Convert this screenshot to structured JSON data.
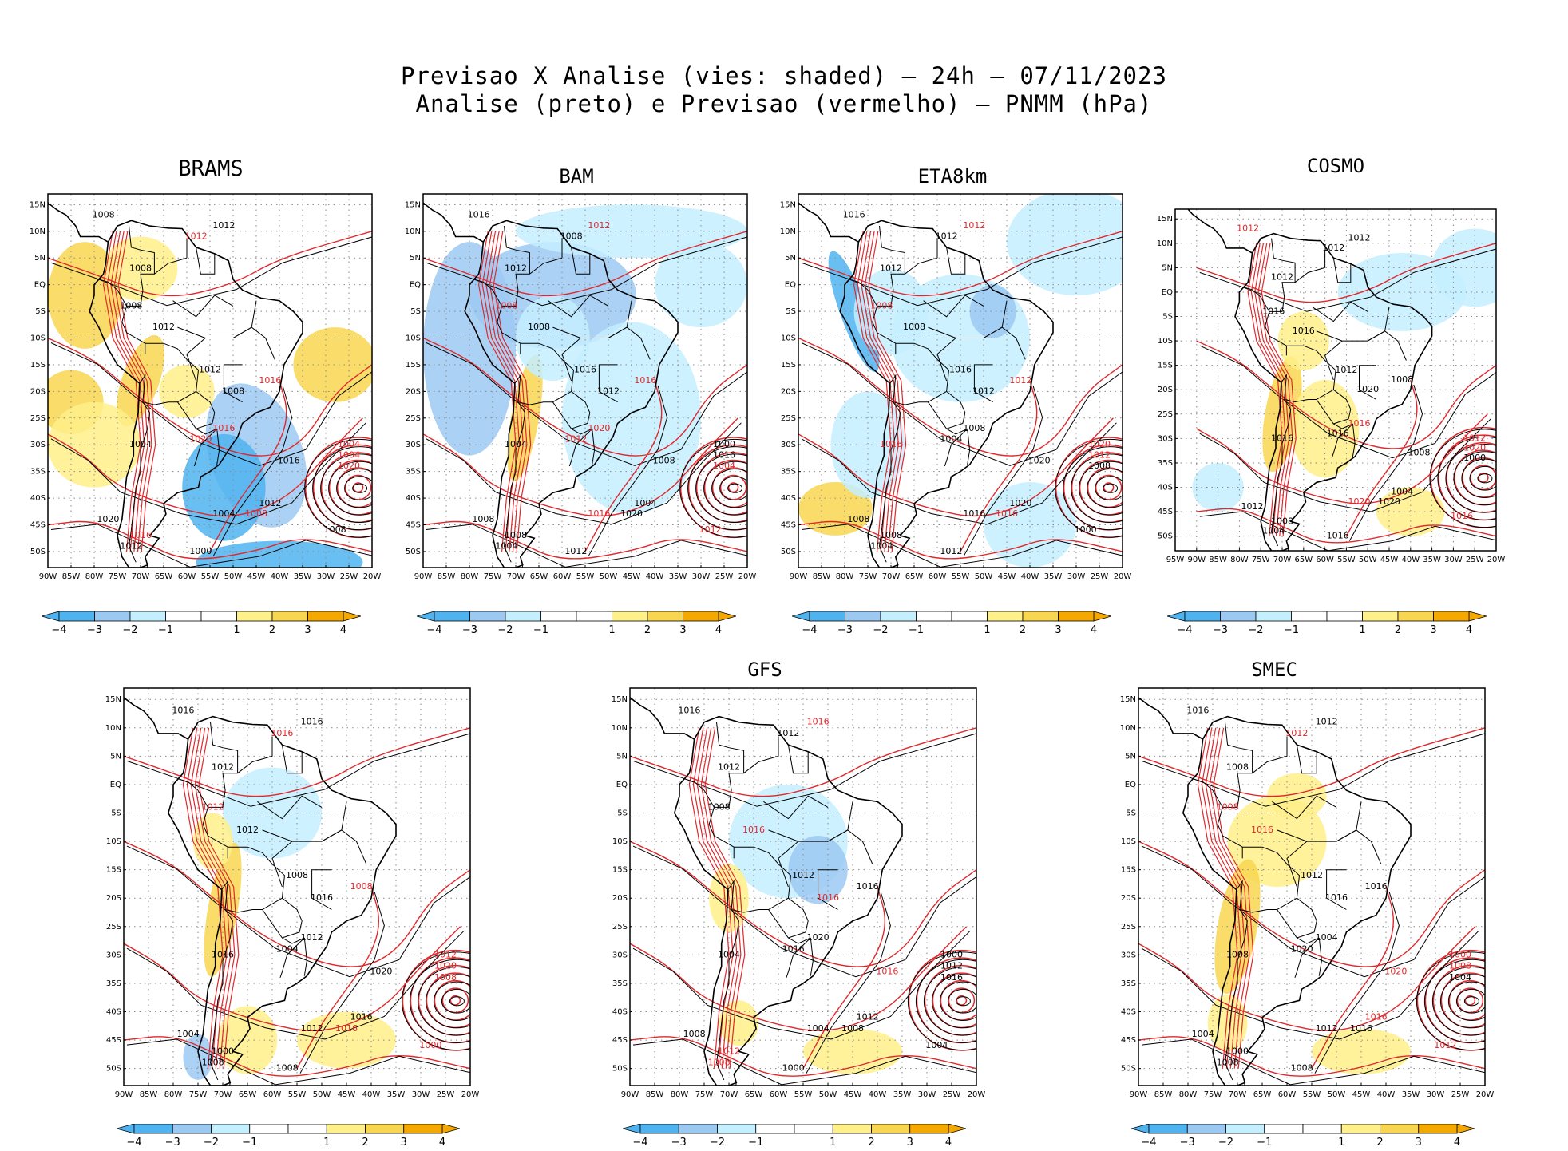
{
  "title": {
    "line1": "Previsao X Analise (vies: shaded) – 24h – 07/11/2023",
    "line2": "Analise (preto) e Previsao (vermelho) – PNMM (hPa)"
  },
  "colors": {
    "neg4": "#4fb3f0",
    "neg3": "#9cc9f2",
    "neg2": "#c4efff",
    "neg1": "#ffffff",
    "pos1": "#ffffff",
    "pos2": "#fff08a",
    "pos3": "#f8d650",
    "pos4": "#f5a900",
    "analysis_contour": "#000000",
    "forecast_contour": "#e0282c",
    "grid": "#888888"
  },
  "lat_labels": [
    "15N",
    "10N",
    "5N",
    "EQ",
    "5S",
    "10S",
    "15S",
    "20S",
    "25S",
    "30S",
    "35S",
    "40S",
    "45S",
    "50S"
  ],
  "lon_labels_standard": [
    "90W",
    "85W",
    "80W",
    "75W",
    "70W",
    "65W",
    "60W",
    "55W",
    "50W",
    "45W",
    "40W",
    "35W",
    "30W",
    "25W",
    "20W"
  ],
  "lon_labels_cosmo": [
    "95W",
    "90W",
    "85W",
    "80W",
    "75W",
    "70W",
    "65W",
    "60W",
    "55W",
    "50W",
    "45W",
    "40W",
    "35W",
    "30W",
    "25W",
    "20W"
  ],
  "colorbar_labels": [
    "−4",
    "−3",
    "−2",
    "−1",
    "1",
    "2",
    "3",
    "4"
  ],
  "panels": [
    {
      "id": "brams",
      "name": "BRAMS",
      "labels": [
        {
          "t": "1008",
          "c": "k"
        },
        {
          "t": "1012",
          "c": "k"
        },
        {
          "t": "1012",
          "c": "r"
        },
        {
          "t": "1008",
          "c": "k"
        },
        {
          "t": "1008",
          "c": "k"
        },
        {
          "t": "1012",
          "c": "k"
        },
        {
          "t": "1016",
          "c": "r"
        },
        {
          "t": "1012",
          "c": "k"
        },
        {
          "t": "1008",
          "c": "k"
        },
        {
          "t": "1004",
          "c": "k"
        },
        {
          "t": "1016",
          "c": "r"
        },
        {
          "t": "1020",
          "c": "r"
        },
        {
          "t": "1016",
          "c": "k"
        },
        {
          "t": "1012",
          "c": "k"
        },
        {
          "t": "1008",
          "c": "r"
        },
        {
          "t": "1004",
          "c": "k"
        },
        {
          "t": "1000",
          "c": "k"
        },
        {
          "t": "1020",
          "c": "k"
        },
        {
          "t": "1016",
          "c": "r"
        },
        {
          "t": "1012",
          "c": "k"
        },
        {
          "t": "1008",
          "c": "k"
        },
        {
          "t": "1004",
          "c": "r"
        },
        {
          "t": "1004",
          "c": "r"
        },
        {
          "t": "1020",
          "c": "r"
        }
      ]
    },
    {
      "id": "bam",
      "name": "BAM",
      "labels": [
        {
          "t": "1016",
          "c": "k"
        },
        {
          "t": "1012",
          "c": "r"
        },
        {
          "t": "1008",
          "c": "k"
        },
        {
          "t": "1012",
          "c": "k"
        },
        {
          "t": "1008",
          "c": "r"
        },
        {
          "t": "1008",
          "c": "k"
        },
        {
          "t": "1016",
          "c": "r"
        },
        {
          "t": "1016",
          "c": "k"
        },
        {
          "t": "1012",
          "c": "k"
        },
        {
          "t": "1004",
          "c": "k"
        },
        {
          "t": "1020",
          "c": "r"
        },
        {
          "t": "1012",
          "c": "r"
        },
        {
          "t": "1008",
          "c": "k"
        },
        {
          "t": "1004",
          "c": "k"
        },
        {
          "t": "1020",
          "c": "k"
        },
        {
          "t": "1016",
          "c": "r"
        },
        {
          "t": "1012",
          "c": "k"
        },
        {
          "t": "1008",
          "c": "k"
        },
        {
          "t": "1008",
          "c": "k"
        },
        {
          "t": "1004",
          "c": "k"
        },
        {
          "t": "1012",
          "c": "r"
        },
        {
          "t": "1000",
          "c": "k"
        },
        {
          "t": "1016",
          "c": "k"
        },
        {
          "t": "1004",
          "c": "r"
        }
      ]
    },
    {
      "id": "eta8km",
      "name": "ETA8km",
      "labels": [
        {
          "t": "1016",
          "c": "k"
        },
        {
          "t": "1012",
          "c": "r"
        },
        {
          "t": "1012",
          "c": "k"
        },
        {
          "t": "1012",
          "c": "k"
        },
        {
          "t": "1008",
          "c": "r"
        },
        {
          "t": "1008",
          "c": "k"
        },
        {
          "t": "1012",
          "c": "r"
        },
        {
          "t": "1016",
          "c": "k"
        },
        {
          "t": "1012",
          "c": "k"
        },
        {
          "t": "1016",
          "c": "r"
        },
        {
          "t": "1008",
          "c": "k"
        },
        {
          "t": "1004",
          "c": "k"
        },
        {
          "t": "1020",
          "c": "k"
        },
        {
          "t": "1020",
          "c": "k"
        },
        {
          "t": "1016",
          "c": "r"
        },
        {
          "t": "1016",
          "c": "k"
        },
        {
          "t": "1012",
          "c": "k"
        },
        {
          "t": "1008",
          "c": "k"
        },
        {
          "t": "1008",
          "c": "k"
        },
        {
          "t": "1004",
          "c": "k"
        },
        {
          "t": "1000",
          "c": "k"
        },
        {
          "t": "1020",
          "c": "r"
        },
        {
          "t": "1012",
          "c": "r"
        },
        {
          "t": "1008",
          "c": "k"
        }
      ]
    },
    {
      "id": "cosmo",
      "name": "COSMO",
      "labels": [
        {
          "t": "1012",
          "c": "r"
        },
        {
          "t": "1012",
          "c": "k"
        },
        {
          "t": "1012",
          "c": "k"
        },
        {
          "t": "1012",
          "c": "k"
        },
        {
          "t": "1016",
          "c": "k"
        },
        {
          "t": "1016",
          "c": "k"
        },
        {
          "t": "1008",
          "c": "k"
        },
        {
          "t": "1012",
          "c": "k"
        },
        {
          "t": "1020",
          "c": "k"
        },
        {
          "t": "1016",
          "c": "k"
        },
        {
          "t": "1016",
          "c": "r"
        },
        {
          "t": "1016",
          "c": "k"
        },
        {
          "t": "1008",
          "c": "k"
        },
        {
          "t": "1004",
          "c": "k"
        },
        {
          "t": "1020",
          "c": "k"
        },
        {
          "t": "1020",
          "c": "r"
        },
        {
          "t": "1016",
          "c": "k"
        },
        {
          "t": "1012",
          "c": "k"
        },
        {
          "t": "1008",
          "c": "k"
        },
        {
          "t": "1004",
          "c": "k"
        },
        {
          "t": "1016",
          "c": "r"
        },
        {
          "t": "1012",
          "c": "r"
        },
        {
          "t": "1020",
          "c": "r"
        },
        {
          "t": "1000",
          "c": "k"
        }
      ]
    },
    {
      "id": "unnamed",
      "name": "",
      "labels": [
        {
          "t": "1016",
          "c": "k"
        },
        {
          "t": "1016",
          "c": "k"
        },
        {
          "t": "1016",
          "c": "r"
        },
        {
          "t": "1012",
          "c": "k"
        },
        {
          "t": "1012",
          "c": "r"
        },
        {
          "t": "1012",
          "c": "k"
        },
        {
          "t": "1008",
          "c": "r"
        },
        {
          "t": "1008",
          "c": "k"
        },
        {
          "t": "1016",
          "c": "k"
        },
        {
          "t": "1016",
          "c": "k"
        },
        {
          "t": "1012",
          "c": "k"
        },
        {
          "t": "1004",
          "c": "k"
        },
        {
          "t": "1020",
          "c": "k"
        },
        {
          "t": "1016",
          "c": "k"
        },
        {
          "t": "1016",
          "c": "r"
        },
        {
          "t": "1012",
          "c": "k"
        },
        {
          "t": "1008",
          "c": "k"
        },
        {
          "t": "1004",
          "c": "k"
        },
        {
          "t": "1000",
          "c": "k"
        },
        {
          "t": "1008",
          "c": "k"
        },
        {
          "t": "1000",
          "c": "r"
        },
        {
          "t": "1012",
          "c": "r"
        },
        {
          "t": "1020",
          "c": "r"
        },
        {
          "t": "1008",
          "c": "r"
        }
      ]
    },
    {
      "id": "gfs",
      "name": "GFS",
      "labels": [
        {
          "t": "1016",
          "c": "k"
        },
        {
          "t": "1016",
          "c": "r"
        },
        {
          "t": "1012",
          "c": "k"
        },
        {
          "t": "1012",
          "c": "k"
        },
        {
          "t": "1008",
          "c": "k"
        },
        {
          "t": "1016",
          "c": "r"
        },
        {
          "t": "1016",
          "c": "k"
        },
        {
          "t": "1012",
          "c": "k"
        },
        {
          "t": "1016",
          "c": "r"
        },
        {
          "t": "1004",
          "c": "k"
        },
        {
          "t": "1020",
          "c": "k"
        },
        {
          "t": "1016",
          "c": "k"
        },
        {
          "t": "1016",
          "c": "r"
        },
        {
          "t": "1012",
          "c": "k"
        },
        {
          "t": "1008",
          "c": "k"
        },
        {
          "t": "1004",
          "c": "k"
        },
        {
          "t": "1000",
          "c": "k"
        },
        {
          "t": "1008",
          "c": "k"
        },
        {
          "t": "1012",
          "c": "r"
        },
        {
          "t": "1008",
          "c": "r"
        },
        {
          "t": "1004",
          "c": "k"
        },
        {
          "t": "1000",
          "c": "k"
        },
        {
          "t": "1012",
          "c": "k"
        },
        {
          "t": "1016",
          "c": "k"
        }
      ]
    },
    {
      "id": "smec",
      "name": "SMEC",
      "labels": [
        {
          "t": "1016",
          "c": "k"
        },
        {
          "t": "1012",
          "c": "k"
        },
        {
          "t": "1012",
          "c": "r"
        },
        {
          "t": "1008",
          "c": "k"
        },
        {
          "t": "1008",
          "c": "r"
        },
        {
          "t": "1016",
          "c": "r"
        },
        {
          "t": "1016",
          "c": "k"
        },
        {
          "t": "1012",
          "c": "k"
        },
        {
          "t": "1016",
          "c": "k"
        },
        {
          "t": "1008",
          "c": "k"
        },
        {
          "t": "1004",
          "c": "k"
        },
        {
          "t": "1020",
          "c": "k"
        },
        {
          "t": "1020",
          "c": "r"
        },
        {
          "t": "1016",
          "c": "r"
        },
        {
          "t": "1016",
          "c": "k"
        },
        {
          "t": "1012",
          "c": "k"
        },
        {
          "t": "1008",
          "c": "k"
        },
        {
          "t": "1004",
          "c": "k"
        },
        {
          "t": "1000",
          "c": "k"
        },
        {
          "t": "1008",
          "c": "k"
        },
        {
          "t": "1012",
          "c": "r"
        },
        {
          "t": "1000",
          "c": "r"
        },
        {
          "t": "1008",
          "c": "r"
        },
        {
          "t": "1004",
          "c": "k"
        }
      ]
    }
  ]
}
